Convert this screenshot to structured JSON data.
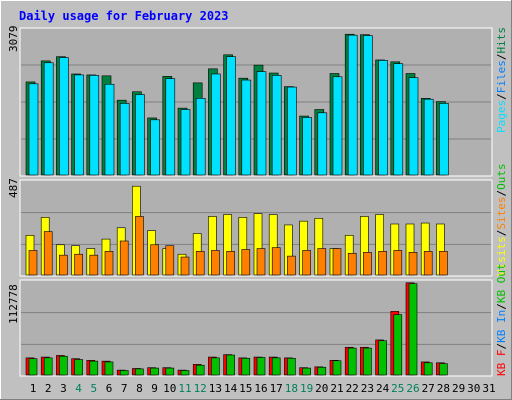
{
  "title": "Daily usage for February 2023",
  "colors": {
    "background": "#c0c0c0",
    "plot": "#b0b0b0",
    "grid": "#808080",
    "title": "#0000ff",
    "hits": "#008040",
    "files": "#0080ff",
    "pages": "#00e0ff",
    "visits": "#ffff00",
    "sites": "#ff8000",
    "kbin": "#ff0000",
    "kbout": "#00c000",
    "weekend": "#00805c",
    "weekday": "#000000"
  },
  "chart_data": [
    {
      "type": "bar",
      "panel": "requests",
      "ymax_label": "3079",
      "ylim": [
        0,
        3079
      ],
      "legend": [
        {
          "name": "Pages",
          "color": "#00e0ff"
        },
        {
          "name": "Files",
          "color": "#0080ff"
        },
        {
          "name": "Hits",
          "color": "#008040"
        }
      ],
      "categories": [
        "1",
        "2",
        "3",
        "4",
        "5",
        "6",
        "7",
        "8",
        "9",
        "10",
        "11",
        "12",
        "13",
        "14",
        "15",
        "16",
        "17",
        "18",
        "19",
        "20",
        "21",
        "22",
        "23",
        "24",
        "25",
        "26",
        "27",
        "28",
        "29",
        "30",
        "31"
      ],
      "series": [
        {
          "name": "Hits",
          "color": "#008040",
          "values": [
            1990,
            2440,
            2530,
            2160,
            2140,
            2120,
            1600,
            1780,
            1220,
            2110,
            1430,
            1970,
            2270,
            2570,
            2070,
            2350,
            2180,
            1890,
            1260,
            1400,
            2170,
            3010,
            3000,
            2460,
            2420,
            2170,
            1640,
            1570,
            null,
            null,
            null
          ]
        },
        {
          "name": "Pages",
          "color": "#00e0ff",
          "values": [
            1950,
            2400,
            2510,
            2140,
            2130,
            1940,
            1530,
            1720,
            1180,
            2060,
            1400,
            1640,
            2160,
            2530,
            2030,
            2210,
            2130,
            1880,
            1230,
            1330,
            2100,
            2990,
            2980,
            2450,
            2380,
            2080,
            1620,
            1530,
            null,
            null,
            null
          ]
        }
      ]
    },
    {
      "type": "bar",
      "panel": "visitors",
      "ymax_label": "487",
      "ylim": [
        0,
        487
      ],
      "legend": [
        {
          "name": "Visits",
          "color": "#ffff00"
        },
        {
          "name": "Sites",
          "color": "#ff8000"
        },
        {
          "name": "Outs",
          "color": "#00c000"
        }
      ],
      "categories": [
        "1",
        "2",
        "3",
        "4",
        "5",
        "6",
        "7",
        "8",
        "9",
        "10",
        "11",
        "12",
        "13",
        "14",
        "15",
        "16",
        "17",
        "18",
        "19",
        "20",
        "21",
        "22",
        "23",
        "24",
        "25",
        "26",
        "27",
        "28",
        "29",
        "30",
        "31"
      ],
      "series": [
        {
          "name": "Visits",
          "color": "#ffff00",
          "values": [
            210,
            305,
            160,
            155,
            140,
            190,
            250,
            470,
            235,
            140,
            110,
            220,
            310,
            320,
            305,
            325,
            320,
            265,
            285,
            300,
            140,
            210,
            310,
            320,
            270,
            270,
            275,
            270,
            null,
            null,
            null
          ]
        },
        {
          "name": "Sites",
          "color": "#ff8000",
          "values": [
            130,
            230,
            105,
            110,
            105,
            125,
            180,
            310,
            160,
            155,
            95,
            125,
            130,
            125,
            135,
            140,
            145,
            100,
            130,
            140,
            140,
            115,
            120,
            125,
            130,
            120,
            125,
            125,
            null,
            null,
            null
          ]
        }
      ]
    },
    {
      "type": "bar",
      "panel": "traffic",
      "ymax_label": "112778",
      "ylim": [
        0,
        112778
      ],
      "legend": [
        {
          "name": "KB F",
          "color": "#ff0000"
        },
        {
          "name": "KB In",
          "color": "#0080ff"
        },
        {
          "name": "KB Out",
          "color": "#00c000"
        }
      ],
      "categories": [
        "1",
        "2",
        "3",
        "4",
        "5",
        "6",
        "7",
        "8",
        "9",
        "10",
        "11",
        "12",
        "13",
        "14",
        "15",
        "16",
        "17",
        "18",
        "19",
        "20",
        "21",
        "22",
        "23",
        "24",
        "25",
        "26",
        "27",
        "28",
        "29",
        "30",
        "31"
      ],
      "series": [
        {
          "name": "KB F",
          "color": "#ff0000",
          "values": [
            21000,
            22000,
            24000,
            20000,
            18000,
            17000,
            6000,
            8000,
            9000,
            9000,
            6000,
            13000,
            22000,
            25000,
            21000,
            22000,
            22000,
            21000,
            9000,
            10000,
            18000,
            34000,
            34000,
            43000,
            78000,
            113000,
            16000,
            15000,
            null,
            null,
            null
          ]
        },
        {
          "name": "KB Out",
          "color": "#00c000",
          "values": [
            20000,
            21000,
            23000,
            19000,
            17000,
            16000,
            5500,
            7500,
            8500,
            8500,
            5500,
            12000,
            21000,
            24500,
            20500,
            21500,
            21000,
            20500,
            8500,
            9500,
            17500,
            33000,
            33000,
            42000,
            74000,
            112000,
            15000,
            14000,
            null,
            null,
            null
          ]
        }
      ]
    }
  ]
}
